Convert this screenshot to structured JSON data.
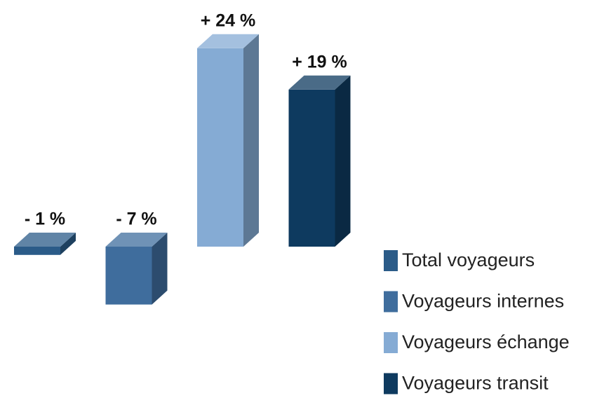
{
  "chart_data": {
    "type": "bar3d",
    "series": [
      {
        "name": "Total voyageurs",
        "color": "#2b5b88",
        "values": [
          -1
        ],
        "value_labels": [
          "- 1 %"
        ]
      },
      {
        "name": "Voyageurs internes",
        "color": "#3f6d9d",
        "values": [
          -7
        ],
        "value_labels": [
          "- 7 %"
        ]
      },
      {
        "name": "Voyageurs échange",
        "color": "#85abd4",
        "values": [
          24
        ],
        "value_labels": [
          "+ 24 %"
        ]
      },
      {
        "name": "Voyageurs transit",
        "color": "#0e3a5f",
        "values": [
          19
        ],
        "value_labels": [
          "+ 19 %"
        ]
      }
    ]
  }
}
